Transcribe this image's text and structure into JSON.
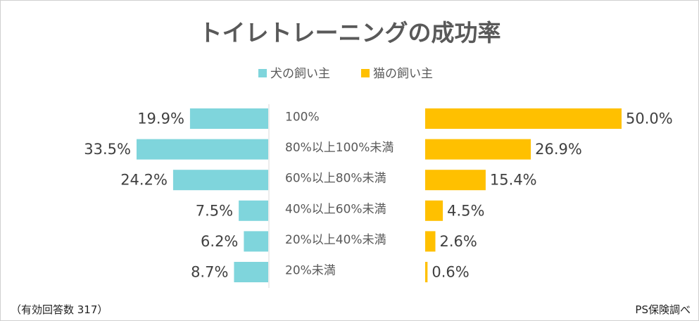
{
  "chart_data": {
    "type": "bar",
    "title": "トイレトレーニングの成功率",
    "categories": [
      "100%",
      "80%以上100%未満",
      "60%以上80%未満",
      "40%以上60%未満",
      "20%以上40%未満",
      "20%未満"
    ],
    "series": [
      {
        "name": "犬の飼い主",
        "color": "#7fd5dc",
        "values": [
          19.9,
          33.5,
          24.2,
          7.5,
          6.2,
          8.7
        ],
        "labels": [
          "19.9%",
          "33.5%",
          "24.2%",
          "7.5%",
          "6.2%",
          "8.7%"
        ]
      },
      {
        "name": "猫の飼い主",
        "color": "#ffc000",
        "values": [
          50.0,
          26.9,
          15.4,
          4.5,
          2.6,
          0.6
        ],
        "labels": [
          "50.0%",
          "26.9%",
          "15.4%",
          "4.5%",
          "2.6%",
          "0.6%"
        ]
      }
    ],
    "xlabel": "",
    "ylabel": "",
    "legend": "top-center"
  },
  "footer": {
    "sample_note": "（有効回答数 317）",
    "source": "PS保険調べ"
  },
  "colors": {
    "axis": "#d9d9d9",
    "text": "#595959"
  }
}
